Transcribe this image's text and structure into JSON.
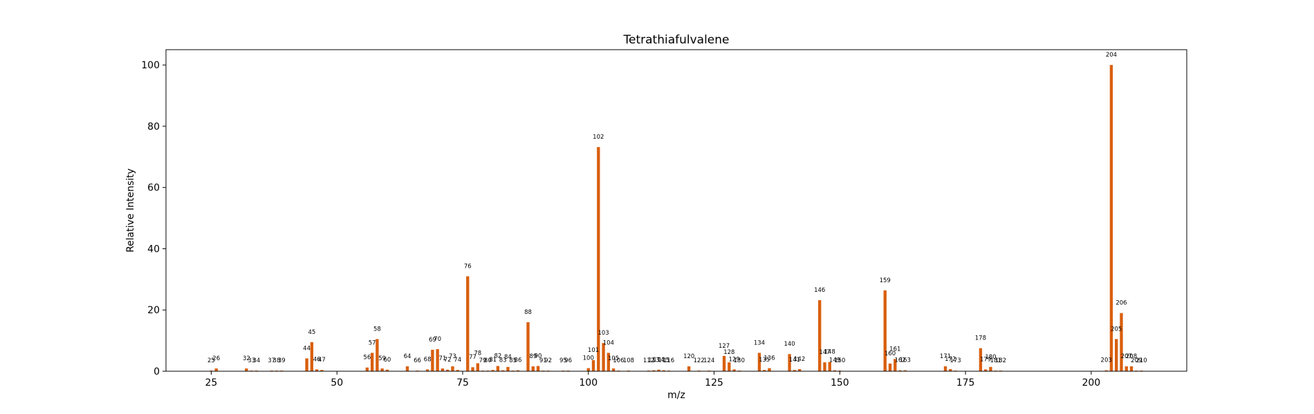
{
  "chart_data": {
    "type": "bar",
    "title": "Tetrathiafulvalene",
    "xlabel": "m/z",
    "ylabel": "Relative Intensity",
    "xlim": [
      16,
      219
    ],
    "ylim": [
      0,
      105
    ],
    "xticks": [
      25,
      50,
      75,
      100,
      125,
      150,
      175,
      200
    ],
    "yticks": [
      0,
      20,
      40,
      60,
      80,
      100
    ],
    "bar_color": "#d95f0e",
    "grid": false,
    "peaks": [
      {
        "x": 25,
        "y": 0.2
      },
      {
        "x": 26,
        "y": 0.9
      },
      {
        "x": 32,
        "y": 0.9
      },
      {
        "x": 33,
        "y": 0.2
      },
      {
        "x": 34,
        "y": 0.2
      },
      {
        "x": 37,
        "y": 0.2
      },
      {
        "x": 38,
        "y": 0.2
      },
      {
        "x": 39,
        "y": 0.2
      },
      {
        "x": 44,
        "y": 4.2
      },
      {
        "x": 45,
        "y": 9.5
      },
      {
        "x": 46,
        "y": 0.6
      },
      {
        "x": 47,
        "y": 0.4
      },
      {
        "x": 56,
        "y": 1.2
      },
      {
        "x": 57,
        "y": 6.0
      },
      {
        "x": 58,
        "y": 10.5
      },
      {
        "x": 59,
        "y": 0.9
      },
      {
        "x": 60,
        "y": 0.5
      },
      {
        "x": 64,
        "y": 1.6
      },
      {
        "x": 66,
        "y": 0.2
      },
      {
        "x": 68,
        "y": 0.6
      },
      {
        "x": 69,
        "y": 7.0
      },
      {
        "x": 70,
        "y": 7.2
      },
      {
        "x": 71,
        "y": 0.9
      },
      {
        "x": 72,
        "y": 0.5
      },
      {
        "x": 73,
        "y": 1.6
      },
      {
        "x": 74,
        "y": 0.4
      },
      {
        "x": 76,
        "y": 31.0
      },
      {
        "x": 77,
        "y": 1.3
      },
      {
        "x": 78,
        "y": 2.6
      },
      {
        "x": 79,
        "y": 0.2
      },
      {
        "x": 80,
        "y": 0.2
      },
      {
        "x": 81,
        "y": 0.4
      },
      {
        "x": 82,
        "y": 1.7
      },
      {
        "x": 83,
        "y": 0.3
      },
      {
        "x": 84,
        "y": 1.4
      },
      {
        "x": 85,
        "y": 0.2
      },
      {
        "x": 86,
        "y": 0.3
      },
      {
        "x": 88,
        "y": 16.0
      },
      {
        "x": 89,
        "y": 1.6
      },
      {
        "x": 90,
        "y": 1.7
      },
      {
        "x": 91,
        "y": 0.2
      },
      {
        "x": 92,
        "y": 0.2
      },
      {
        "x": 95,
        "y": 0.2
      },
      {
        "x": 96,
        "y": 0.2
      },
      {
        "x": 100,
        "y": 1.0
      },
      {
        "x": 101,
        "y": 3.6
      },
      {
        "x": 102,
        "y": 73.2
      },
      {
        "x": 103,
        "y": 9.2
      },
      {
        "x": 104,
        "y": 6.0
      },
      {
        "x": 105,
        "y": 0.9
      },
      {
        "x": 106,
        "y": 0.2
      },
      {
        "x": 108,
        "y": 0.2
      },
      {
        "x": 112,
        "y": 0.2
      },
      {
        "x": 113,
        "y": 0.3
      },
      {
        "x": 114,
        "y": 0.5
      },
      {
        "x": 115,
        "y": 0.3
      },
      {
        "x": 116,
        "y": 0.2
      },
      {
        "x": 120,
        "y": 1.6
      },
      {
        "x": 122,
        "y": 0.2
      },
      {
        "x": 124,
        "y": 0.2
      },
      {
        "x": 127,
        "y": 5.0
      },
      {
        "x": 128,
        "y": 2.9
      },
      {
        "x": 129,
        "y": 0.6
      },
      {
        "x": 130,
        "y": 0.2
      },
      {
        "x": 134,
        "y": 6.0
      },
      {
        "x": 135,
        "y": 0.4
      },
      {
        "x": 136,
        "y": 1.0
      },
      {
        "x": 140,
        "y": 5.6
      },
      {
        "x": 141,
        "y": 0.4
      },
      {
        "x": 142,
        "y": 0.7
      },
      {
        "x": 146,
        "y": 23.2
      },
      {
        "x": 147,
        "y": 2.9
      },
      {
        "x": 148,
        "y": 3.0
      },
      {
        "x": 149,
        "y": 0.3
      },
      {
        "x": 150,
        "y": 0.2
      },
      {
        "x": 159,
        "y": 26.4
      },
      {
        "x": 160,
        "y": 2.5
      },
      {
        "x": 161,
        "y": 4.0
      },
      {
        "x": 162,
        "y": 0.3
      },
      {
        "x": 163,
        "y": 0.3
      },
      {
        "x": 171,
        "y": 1.6
      },
      {
        "x": 172,
        "y": 0.7
      },
      {
        "x": 173,
        "y": 0.2
      },
      {
        "x": 178,
        "y": 7.5
      },
      {
        "x": 179,
        "y": 0.6
      },
      {
        "x": 180,
        "y": 1.4
      },
      {
        "x": 181,
        "y": 0.2
      },
      {
        "x": 182,
        "y": 0.2
      },
      {
        "x": 203,
        "y": 0.3
      },
      {
        "x": 204,
        "y": 100.0
      },
      {
        "x": 205,
        "y": 10.5
      },
      {
        "x": 206,
        "y": 19.0
      },
      {
        "x": 207,
        "y": 1.6
      },
      {
        "x": 208,
        "y": 1.6
      },
      {
        "x": 209,
        "y": 0.2
      },
      {
        "x": 210,
        "y": 0.2
      }
    ]
  }
}
